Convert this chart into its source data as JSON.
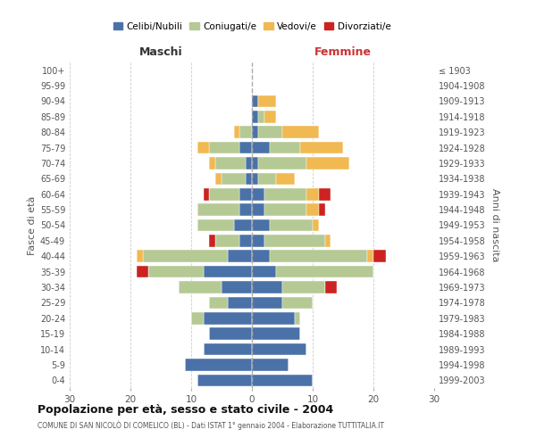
{
  "age_groups": [
    "0-4",
    "5-9",
    "10-14",
    "15-19",
    "20-24",
    "25-29",
    "30-34",
    "35-39",
    "40-44",
    "45-49",
    "50-54",
    "55-59",
    "60-64",
    "65-69",
    "70-74",
    "75-79",
    "80-84",
    "85-89",
    "90-94",
    "95-99",
    "100+"
  ],
  "birth_years": [
    "1999-2003",
    "1994-1998",
    "1989-1993",
    "1984-1988",
    "1979-1983",
    "1974-1978",
    "1969-1973",
    "1964-1968",
    "1959-1963",
    "1954-1958",
    "1949-1953",
    "1944-1948",
    "1939-1943",
    "1934-1938",
    "1929-1933",
    "1924-1928",
    "1919-1923",
    "1914-1918",
    "1909-1913",
    "1904-1908",
    "≤ 1903"
  ],
  "colors": {
    "celibi": "#4a72a8",
    "coniugati": "#b5c994",
    "vedovi": "#f0b952",
    "divorziati": "#cc2222"
  },
  "males": {
    "celibi": [
      9,
      11,
      8,
      7,
      8,
      4,
      5,
      8,
      4,
      2,
      3,
      2,
      2,
      1,
      1,
      2,
      0,
      0,
      0,
      0,
      0
    ],
    "coniugati": [
      0,
      0,
      0,
      0,
      2,
      3,
      7,
      9,
      14,
      4,
      6,
      7,
      5,
      4,
      5,
      5,
      2,
      0,
      0,
      0,
      0
    ],
    "vedovi": [
      0,
      0,
      0,
      0,
      0,
      0,
      0,
      0,
      1,
      0,
      0,
      0,
      0,
      1,
      1,
      2,
      1,
      0,
      0,
      0,
      0
    ],
    "divorziati": [
      0,
      0,
      0,
      0,
      0,
      0,
      0,
      2,
      0,
      1,
      0,
      0,
      1,
      0,
      0,
      0,
      0,
      0,
      0,
      0,
      0
    ]
  },
  "females": {
    "celibi": [
      10,
      6,
      9,
      8,
      7,
      5,
      5,
      4,
      3,
      2,
      3,
      2,
      2,
      1,
      1,
      3,
      1,
      1,
      1,
      0,
      0
    ],
    "coniugati": [
      0,
      0,
      0,
      0,
      1,
      5,
      7,
      16,
      16,
      10,
      7,
      7,
      7,
      3,
      8,
      5,
      4,
      1,
      0,
      0,
      0
    ],
    "vedovi": [
      0,
      0,
      0,
      0,
      0,
      0,
      0,
      0,
      1,
      1,
      1,
      2,
      2,
      3,
      7,
      7,
      6,
      2,
      3,
      0,
      0
    ],
    "divorziati": [
      0,
      0,
      0,
      0,
      0,
      0,
      2,
      0,
      2,
      0,
      0,
      1,
      2,
      0,
      0,
      0,
      0,
      0,
      0,
      0,
      0
    ]
  },
  "title": "Popolazione per età, sesso e stato civile - 2004",
  "subtitle": "COMUNE DI SAN NICOLÒ DI COMELICO (BL) - Dati ISTAT 1° gennaio 2004 - Elaborazione TUTTITALIA.IT",
  "xlabel_left": "Maschi",
  "xlabel_right": "Femmine",
  "ylabel_left": "Fasce di età",
  "ylabel_right": "Anni di nascita",
  "xlim": 30,
  "legend_labels": [
    "Celibi/Nubili",
    "Coniugati/e",
    "Vedovi/e",
    "Divorziati/e"
  ],
  "bg_color": "#ffffff"
}
